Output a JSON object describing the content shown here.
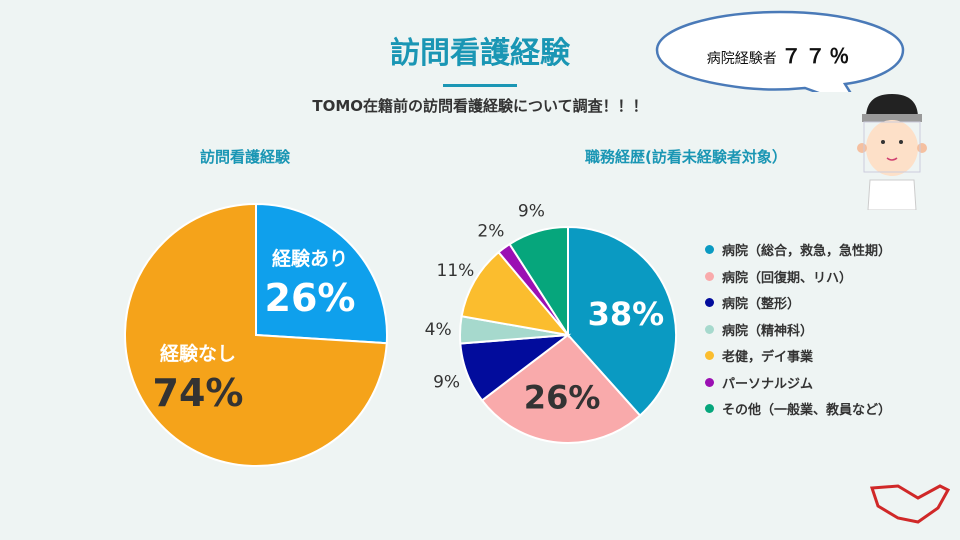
{
  "title": "訪問看護経験",
  "subtitle": "TOMO在籍前の訪問看護経験について調査！！！",
  "bubble": {
    "label": "病院経験者",
    "value": "７７％"
  },
  "chart_data": [
    {
      "type": "pie",
      "title": "訪問看護経験",
      "slices": [
        {
          "label": "経験あり",
          "value": 26,
          "text": "26%",
          "color": "#0fa0ec"
        },
        {
          "label": "経験なし",
          "value": 74,
          "text": "74%",
          "color": "#f5a31a"
        }
      ]
    },
    {
      "type": "pie",
      "title": "職務経歴(訪看未経験者対象）",
      "legend_position": "right",
      "slices": [
        {
          "label": "病院（総合，救急，急性期）",
          "value": 38,
          "text": "38%",
          "color": "#0a9ac2"
        },
        {
          "label": "病院（回復期、リハ）",
          "value": 26,
          "text": "26%",
          "color": "#f9aaab"
        },
        {
          "label": "病院（整形）",
          "value": 9,
          "text": "9%",
          "color": "#020c9c"
        },
        {
          "label": "病院（精神科）",
          "value": 4,
          "text": "4%",
          "color": "#a6d9cd"
        },
        {
          "label": "老健，デイ事業",
          "value": 11,
          "text": "11%",
          "color": "#fbbd2e"
        },
        {
          "label": "パーソナルジム",
          "value": 2,
          "text": "2%",
          "color": "#9b10b3"
        },
        {
          "label": "その他（一般業、教員など）",
          "value": 9,
          "text": "9%",
          "color": "#06a67c"
        }
      ]
    }
  ]
}
